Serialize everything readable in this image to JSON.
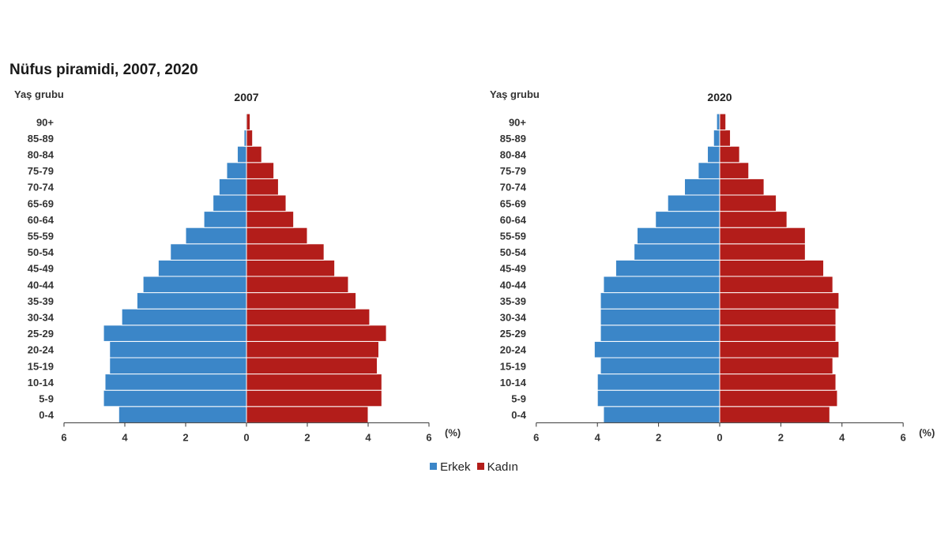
{
  "title": "Nüfus piramidi, 2007, 2020",
  "colors": {
    "male": "#3b86c8",
    "female": "#b31d1a",
    "axis": "#333333"
  },
  "chart_data": {
    "type": "bar",
    "orientation": "horizontal-pyramid",
    "categories": [
      "0-4",
      "5-9",
      "10-14",
      "15-19",
      "20-24",
      "25-29",
      "30-34",
      "35-39",
      "40-44",
      "45-49",
      "50-54",
      "55-59",
      "60-64",
      "65-69",
      "70-74",
      "75-79",
      "80-84",
      "85-89",
      "90+"
    ],
    "ylabel": "Yaş grubu",
    "xlabel": "(%)",
    "xlim": [
      -6,
      6
    ],
    "xticks": [
      6,
      4,
      2,
      0,
      2,
      4,
      6
    ],
    "legend": [
      "Erkek",
      "Kadın"
    ],
    "panels": [
      {
        "title": "2007",
        "series": [
          {
            "name": "Erkek",
            "values": [
              4.2,
              4.7,
              4.65,
              4.5,
              4.5,
              4.7,
              4.1,
              3.6,
              3.4,
              2.9,
              2.5,
              2.0,
              1.4,
              1.1,
              0.9,
              0.65,
              0.3,
              0.08,
              0.03
            ]
          },
          {
            "name": "Kadın",
            "values": [
              4.0,
              4.45,
              4.45,
              4.3,
              4.35,
              4.6,
              4.05,
              3.6,
              3.35,
              2.9,
              2.55,
              2.0,
              1.55,
              1.3,
              1.05,
              0.9,
              0.5,
              0.2,
              0.12
            ]
          }
        ]
      },
      {
        "title": "2020",
        "series": [
          {
            "name": "Erkek",
            "values": [
              3.8,
              4.0,
              4.0,
              3.9,
              4.1,
              3.9,
              3.9,
              3.9,
              3.8,
              3.4,
              2.8,
              2.7,
              2.1,
              1.7,
              1.15,
              0.7,
              0.4,
              0.2,
              0.1
            ]
          },
          {
            "name": "Kadın",
            "values": [
              3.6,
              3.85,
              3.8,
              3.7,
              3.9,
              3.8,
              3.8,
              3.9,
              3.7,
              3.4,
              2.8,
              2.8,
              2.2,
              1.85,
              1.45,
              0.95,
              0.65,
              0.35,
              0.2
            ]
          }
        ]
      }
    ]
  }
}
